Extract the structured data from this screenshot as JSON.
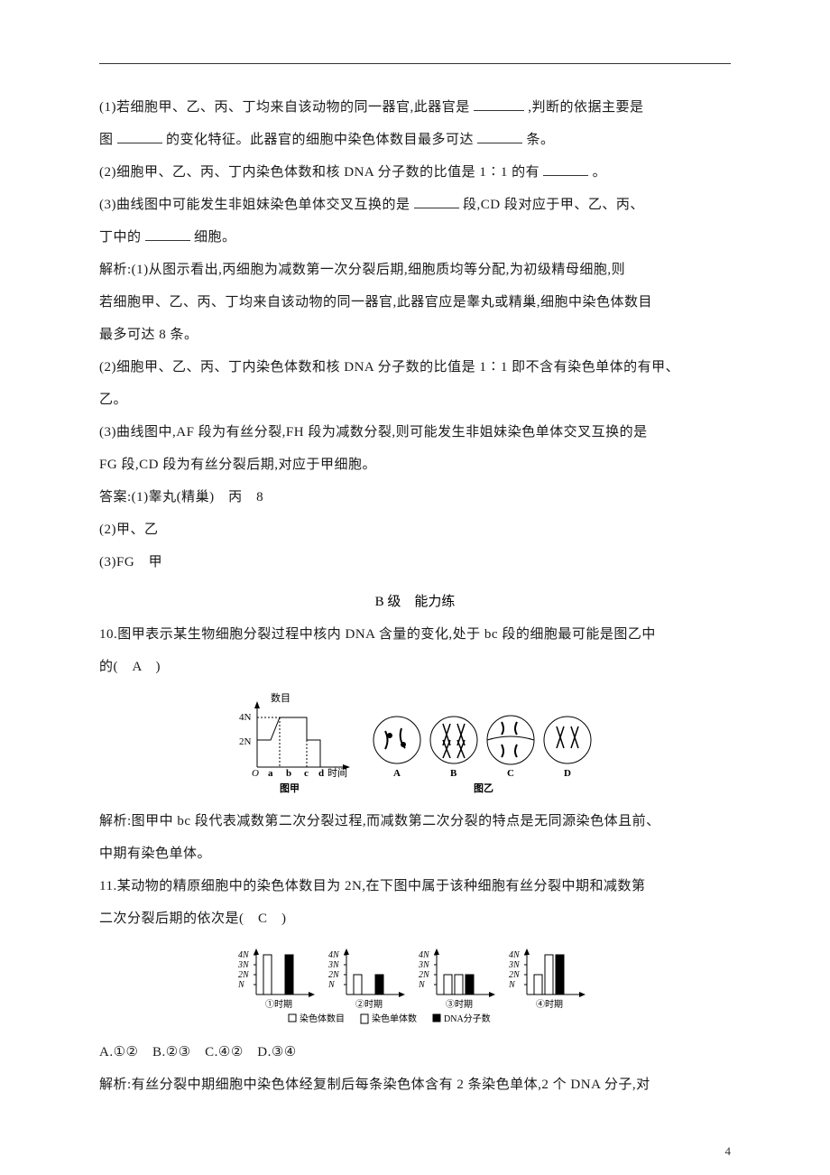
{
  "q1": {
    "p1a": "(1)若细胞甲、乙、丙、丁均来自该动物的同一器官,此器官是",
    "p1b": ",判断的依据主要是",
    "p2a": "图",
    "p2b": "的变化特征。此器官的细胞中染色体数目最多可达",
    "p2c": "条。",
    "p3a": "(2)细胞甲、乙、丙、丁内染色体数和核 DNA 分子数的比值是 1∶1 的有",
    "p3b": "。",
    "p4a": "(3)曲线图中可能发生非姐妹染色单体交叉互换的是",
    "p4b": "段,CD 段对应于甲、乙、丙、",
    "p5a": "丁中的",
    "p5b": "细胞。",
    "exp1": "解析:(1)从图示看出,丙细胞为减数第一次分裂后期,细胞质均等分配,为初级精母细胞,则",
    "exp2": "若细胞甲、乙、丙、丁均来自该动物的同一器官,此器官应是睾丸或精巢,细胞中染色体数目",
    "exp3": "最多可达 8 条。",
    "exp4": "(2)细胞甲、乙、丙、丁内染色体数和核 DNA 分子数的比值是 1∶1 即不含有染色单体的有甲、",
    "exp5": "乙。",
    "exp6": "(3)曲线图中,AF 段为有丝分裂,FH 段为减数分裂,则可能发生非姐妹染色单体交叉互换的是",
    "exp7": "FG 段,CD 段为有丝分裂后期,对应于甲细胞。",
    "ans1": "答案:(1)睾丸(精巢)　丙　8",
    "ans2": "(2)甲、乙",
    "ans3": "(3)FG　甲"
  },
  "sectionB": "B 级　能力练",
  "q10": {
    "stem1": "10.图甲表示某生物细胞分裂过程中核内 DNA 含量的变化,处于 bc 段的细胞最可能是图乙中",
    "stem2": "的(　A　)",
    "exp1": "解析:图甲中 bc 段代表减数第二次分裂过程,而减数第二次分裂的特点是无同源染色体且前、",
    "exp2": "中期有染色单体。",
    "chart": {
      "type": "line_and_cells",
      "yLabel": "数目",
      "yTicks": [
        "4N",
        "2N"
      ],
      "xLabel": "时间",
      "xTicks": [
        "a",
        "b",
        "c",
        "d"
      ],
      "caption_left": "图甲",
      "caption_right": "图乙",
      "cells": [
        "A",
        "B",
        "C",
        "D"
      ],
      "colors": {
        "stroke": "#000000",
        "bg": "#ffffff"
      },
      "fontsize": 11
    }
  },
  "q11": {
    "stem1": "11.某动物的精原细胞中的染色体数目为 2N,在下图中属于该种细胞有丝分裂中期和减数第",
    "stem2": "二次分裂后期的依次是(　C　)",
    "options": "A.①②　B.②③　C.④②　D.③④",
    "exp1": "解析:有丝分裂中期细胞中染色体经复制后每条染色体含有 2 条染色单体,2 个 DNA 分子,对",
    "chart": {
      "type": "grouped_bars_4panels",
      "yTicks": [
        "4N",
        "3N",
        "2N",
        "N"
      ],
      "panels": [
        "①时期",
        "②时期",
        "③时期",
        "④时期"
      ],
      "legend": [
        "染色体数目",
        "染色单体数",
        "DNA分子数"
      ],
      "legend_markers": [
        "□",
        "▭",
        "■"
      ],
      "colors": {
        "chromo": "#ffffff",
        "chromatid": "#ffffff",
        "dna": "#000000",
        "border": "#000000",
        "axis": "#000000"
      },
      "values": {
        "p1": {
          "chromo": 4,
          "chromatid": 0,
          "dna": 4
        },
        "p2": {
          "chromo": 2,
          "chromatid": 0,
          "dna": 2
        },
        "p3": {
          "chromo": 2,
          "chromatid": 2,
          "dna": 2
        },
        "p4": {
          "chromo": 2,
          "chromatid": 4,
          "dna": 4
        }
      },
      "fontsize": 10
    }
  },
  "pageNumber": "4"
}
